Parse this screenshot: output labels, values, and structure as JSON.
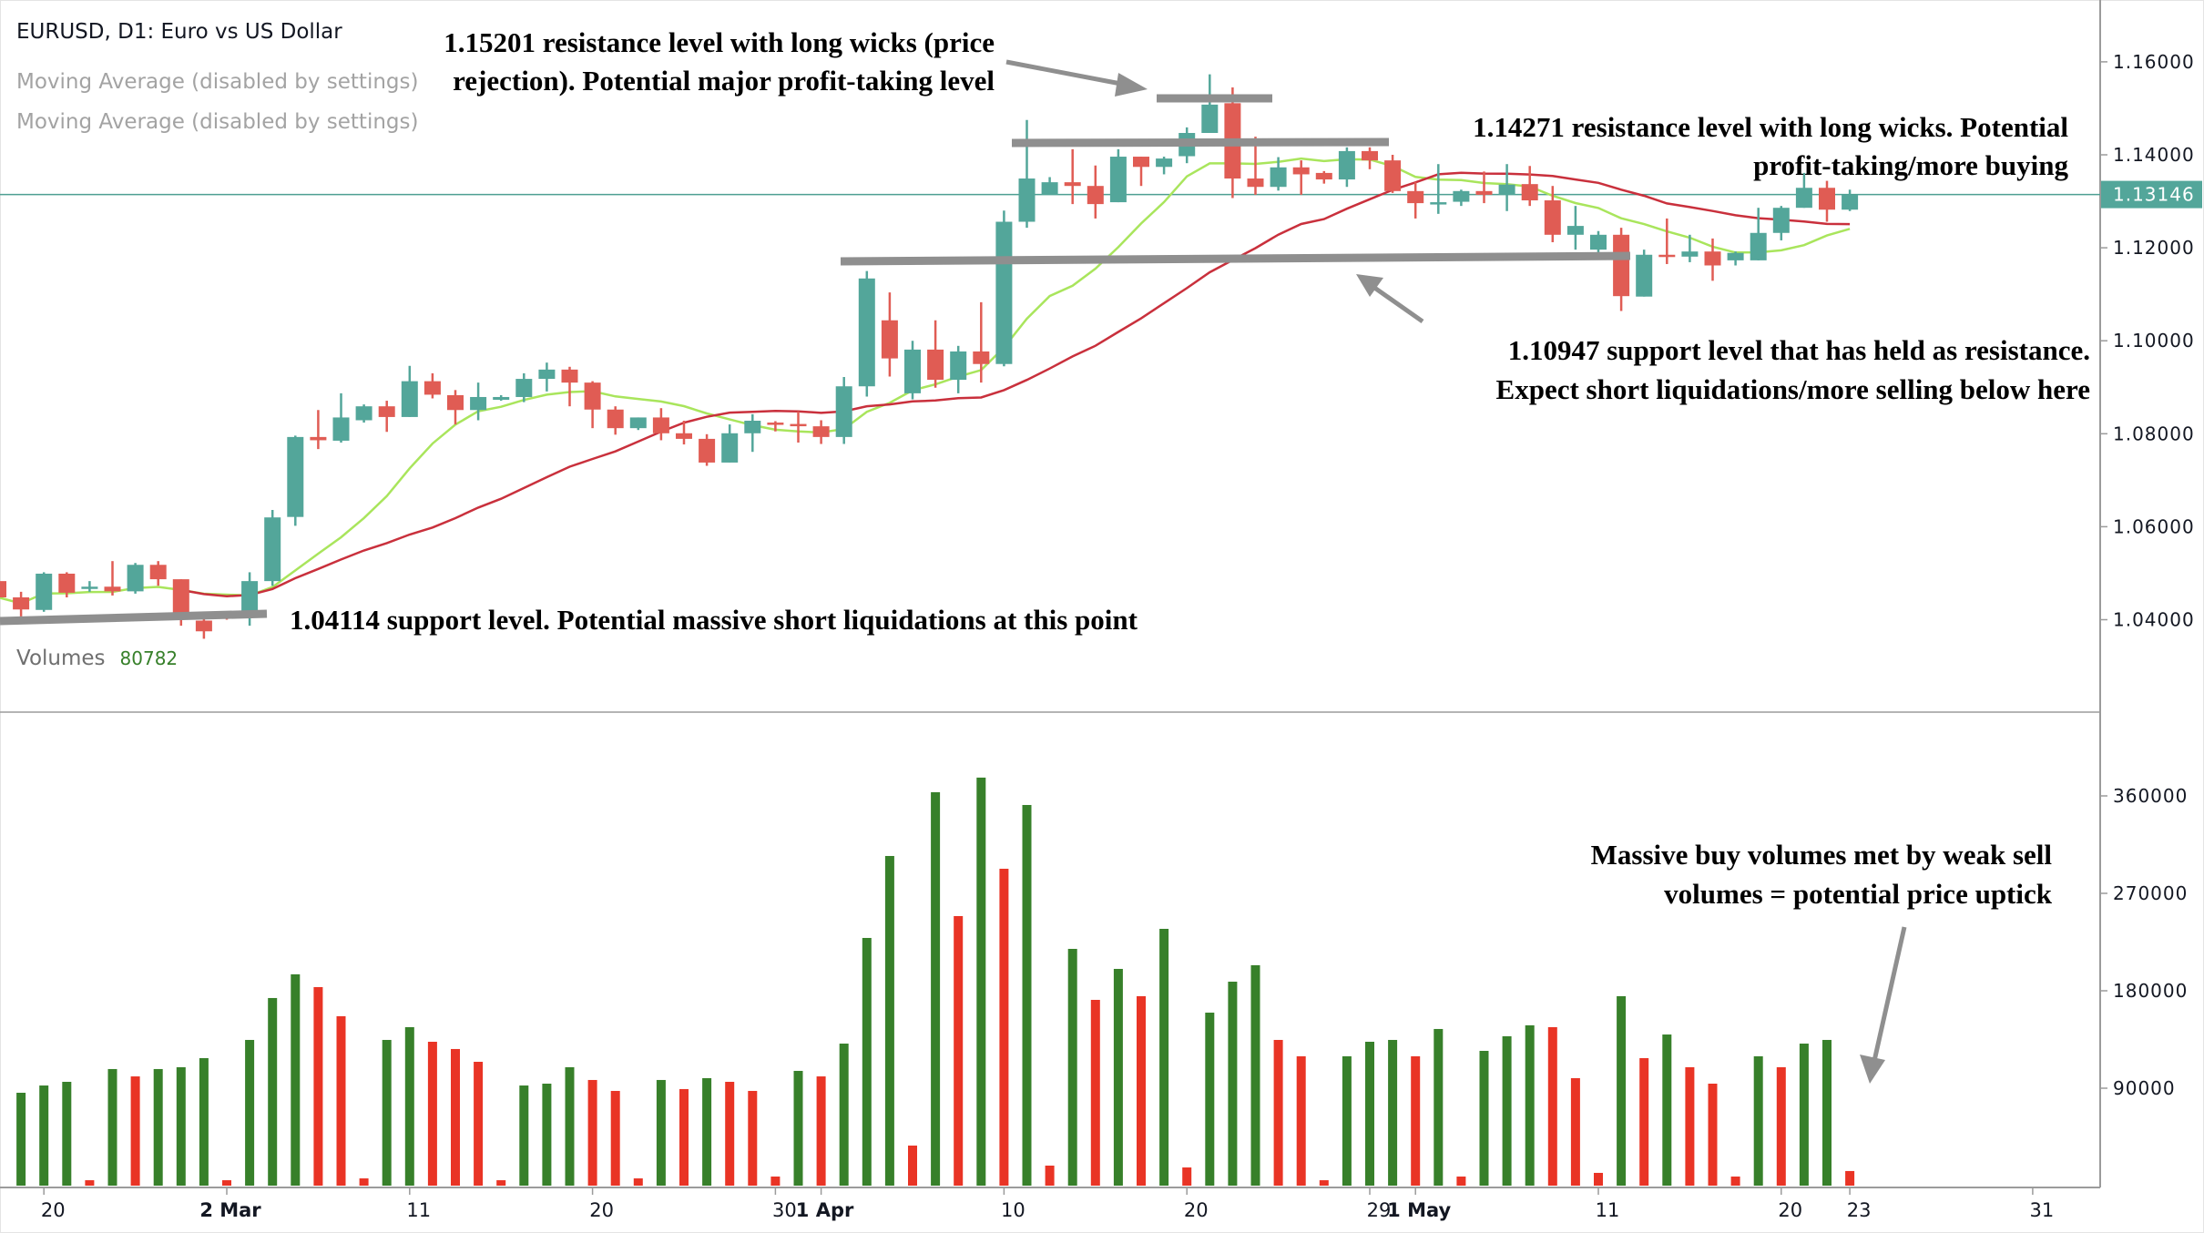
{
  "header": {
    "title": "EURUSD, D1: Euro vs US Dollar",
    "indicators": [
      "Moving Average (disabled by settings)",
      "Moving Average (disabled by settings)"
    ],
    "volumes_label": "Volumes",
    "volumes_value": "80782"
  },
  "current_price": {
    "label": "1.13146",
    "value": 1.13146
  },
  "annotations": {
    "resistance_1": [
      "1.15201 resistance level with long wicks (price",
      "rejection). Potential major profit-taking level"
    ],
    "resistance_2": [
      "1.14271 resistance level with long wicks. Potential",
      "profit-taking/more buying"
    ],
    "support_1": [
      "1.10947 support level that has held as resistance.",
      "Expect short liquidations/more selling below here"
    ],
    "support_2": [
      "1.04114 support level. Potential massive short liquidations at this point"
    ],
    "volume_note": [
      "Massive buy volumes met by weak sell",
      "volumes = potential price uptick"
    ]
  },
  "colors": {
    "up": "#53a69a",
    "down": "#e05c54",
    "vol_up": "#37802a",
    "vol_down": "#e93425",
    "ma_fast": "#a9e55c",
    "ma_slow": "#c9303c",
    "price_line": "#4e9f92",
    "level": "#8f8f8f"
  },
  "chart_data": {
    "type": "candlestick",
    "title": "EURUSD, D1: Euro vs US Dollar",
    "price_axis": {
      "ticks": [
        "1.16000",
        "1.14000",
        "1.12000",
        "1.10000",
        "1.08000",
        "1.06000",
        "1.04000"
      ],
      "range": [
        1.04,
        1.16
      ]
    },
    "volume_axis": {
      "ticks": [
        "360000",
        "270000",
        "180000",
        "90000"
      ]
    },
    "time_axis": [
      {
        "bar": 2,
        "label": "20",
        "bold": false
      },
      {
        "bar": 10,
        "label": "2 Mar",
        "bold": true
      },
      {
        "bar": 18,
        "label": "11",
        "bold": false
      },
      {
        "bar": 26,
        "label": "20",
        "bold": false
      },
      {
        "bar": 34,
        "label": "30",
        "bold": false
      },
      {
        "bar": 36,
        "label": "1 Apr",
        "bold": true
      },
      {
        "bar": 44,
        "label": "10",
        "bold": false
      },
      {
        "bar": 52,
        "label": "20",
        "bold": false
      },
      {
        "bar": 60,
        "label": "29",
        "bold": false
      },
      {
        "bar": 62,
        "label": "1 May",
        "bold": true
      },
      {
        "bar": 70,
        "label": "11",
        "bold": false
      },
      {
        "bar": 78,
        "label": "20",
        "bold": false
      },
      {
        "bar": 81,
        "label": "23",
        "bold": false
      },
      {
        "bar": 89,
        "label": "31",
        "bold": false
      }
    ],
    "ohlc": [
      [
        1.0483,
        1.049,
        1.044,
        1.0448
      ],
      [
        1.0448,
        1.046,
        1.0407,
        1.0422
      ],
      [
        1.0421,
        1.0502,
        1.0417,
        1.0499
      ],
      [
        1.0499,
        1.0502,
        1.0448,
        1.0458
      ],
      [
        1.0468,
        1.0483,
        1.046,
        1.0471
      ],
      [
        1.0471,
        1.0526,
        1.0452,
        1.0461
      ],
      [
        1.0461,
        1.0522,
        1.0456,
        1.0518
      ],
      [
        1.0518,
        1.0526,
        1.0473,
        1.0487
      ],
      [
        1.0487,
        1.0487,
        1.0387,
        1.0411
      ],
      [
        1.0398,
        1.0415,
        1.0359,
        1.0375
      ],
      [
        1.0411,
        1.0418,
        1.04,
        1.0405
      ],
      [
        1.0414,
        1.0502,
        1.0387,
        1.0483
      ],
      [
        1.0483,
        1.0636,
        1.0473,
        1.062
      ],
      [
        1.0621,
        1.0796,
        1.0602,
        1.0793
      ],
      [
        1.0793,
        1.0851,
        1.0767,
        1.0786
      ],
      [
        1.0785,
        1.0887,
        1.0781,
        1.0835
      ],
      [
        1.0829,
        1.0863,
        1.0824,
        1.0859
      ],
      [
        1.0859,
        1.0871,
        1.0804,
        1.0836
      ],
      [
        1.0836,
        1.0946,
        1.0836,
        1.0913
      ],
      [
        1.0913,
        1.093,
        1.0876,
        1.0884
      ],
      [
        1.0883,
        1.0894,
        1.082,
        1.0851
      ],
      [
        1.0851,
        1.091,
        1.0829,
        1.0879
      ],
      [
        1.0873,
        1.0883,
        1.0871,
        1.0879
      ],
      [
        1.0879,
        1.093,
        1.0868,
        1.0918
      ],
      [
        1.0918,
        1.0953,
        1.0891,
        1.0938
      ],
      [
        1.0938,
        1.0944,
        1.0859,
        1.091
      ],
      [
        1.091,
        1.0913,
        1.0812,
        1.0852
      ],
      [
        1.0852,
        1.0859,
        1.0798,
        1.0812
      ],
      [
        1.0812,
        1.0835,
        1.0808,
        1.0835
      ],
      [
        1.0835,
        1.0855,
        1.0786,
        1.0801
      ],
      [
        1.0801,
        1.0828,
        1.0777,
        1.0789
      ],
      [
        1.0789,
        1.0799,
        1.0731,
        1.0738
      ],
      [
        1.0738,
        1.082,
        1.0738,
        1.0801
      ],
      [
        1.0801,
        1.0842,
        1.0761,
        1.0828
      ],
      [
        1.0824,
        1.0827,
        1.0805,
        1.0822
      ],
      [
        1.0821,
        1.0848,
        1.0781,
        1.0818
      ],
      [
        1.0816,
        1.0829,
        1.0778,
        1.0793
      ],
      [
        1.0793,
        1.0922,
        1.0778,
        1.0902
      ],
      [
        1.0902,
        1.115,
        1.088,
        1.1134
      ],
      [
        1.1044,
        1.1104,
        1.0923,
        1.0962
      ],
      [
        1.0887,
        1.1,
        1.0874,
        1.0981
      ],
      [
        1.0981,
        1.1044,
        1.0899,
        1.0916
      ],
      [
        1.0916,
        1.0989,
        1.0887,
        1.0977
      ],
      [
        1.0977,
        1.1083,
        1.091,
        1.095
      ],
      [
        1.095,
        1.128,
        1.0945,
        1.1256
      ],
      [
        1.1256,
        1.1475,
        1.1243,
        1.1349
      ],
      [
        1.1314,
        1.1352,
        1.1314,
        1.1341
      ],
      [
        1.1341,
        1.1412,
        1.1294,
        1.1333
      ],
      [
        1.1333,
        1.1377,
        1.1263,
        1.1294
      ],
      [
        1.1298,
        1.1412,
        1.1298,
        1.1396
      ],
      [
        1.1396,
        1.1396,
        1.1333,
        1.1374
      ],
      [
        1.1374,
        1.1396,
        1.1358,
        1.1392
      ],
      [
        1.1397,
        1.1459,
        1.1382,
        1.1447
      ],
      [
        1.1447,
        1.1573,
        1.1447,
        1.1508
      ],
      [
        1.1511,
        1.1545,
        1.1307,
        1.1349
      ],
      [
        1.1349,
        1.1439,
        1.1314,
        1.1331
      ],
      [
        1.1331,
        1.1395,
        1.1323,
        1.1373
      ],
      [
        1.1373,
        1.1388,
        1.1314,
        1.1358
      ],
      [
        1.1361,
        1.1365,
        1.1338,
        1.1347
      ],
      [
        1.1347,
        1.1416,
        1.1331,
        1.1408
      ],
      [
        1.1408,
        1.1416,
        1.1369,
        1.1388
      ],
      [
        1.1388,
        1.14,
        1.1318,
        1.1322
      ],
      [
        1.1322,
        1.1341,
        1.1263,
        1.1296
      ],
      [
        1.1297,
        1.138,
        1.1273,
        1.1298
      ],
      [
        1.1299,
        1.1325,
        1.129,
        1.1322
      ],
      [
        1.1322,
        1.1364,
        1.1296,
        1.1314
      ],
      [
        1.1314,
        1.138,
        1.1279,
        1.1336
      ],
      [
        1.1337,
        1.1376,
        1.129,
        1.1302
      ],
      [
        1.1302,
        1.1333,
        1.1212,
        1.1228
      ],
      [
        1.1228,
        1.129,
        1.1196,
        1.1247
      ],
      [
        1.1196,
        1.1236,
        1.1189,
        1.1228
      ],
      [
        1.1228,
        1.1243,
        1.1064,
        1.1096
      ],
      [
        1.1095,
        1.1196,
        1.1095,
        1.1185
      ],
      [
        1.1185,
        1.1263,
        1.1165,
        1.1181
      ],
      [
        1.1181,
        1.1228,
        1.1169,
        1.1192
      ],
      [
        1.1192,
        1.122,
        1.1129,
        1.1162
      ],
      [
        1.1173,
        1.1192,
        1.1162,
        1.1189
      ],
      [
        1.1173,
        1.1286,
        1.1173,
        1.1232
      ],
      [
        1.1232,
        1.129,
        1.1216,
        1.1286
      ],
      [
        1.1286,
        1.1361,
        1.1286,
        1.1329
      ],
      [
        1.1329,
        1.1344,
        1.1256,
        1.1282
      ],
      [
        1.1282,
        1.1325,
        1.1279,
        1.1314
      ]
    ],
    "volumes": [
      null,
      85800,
      92500,
      95900,
      5000,
      107700,
      100900,
      107700,
      109400,
      117800,
      5000,
      134600,
      173300,
      195200,
      183400,
      156500,
      6700,
      134600,
      146400,
      132900,
      126200,
      114400,
      5000,
      92500,
      94200,
      109400,
      97600,
      87500,
      6700,
      97600,
      89200,
      99300,
      95900,
      87500,
      8400,
      106000,
      100900,
      131200,
      228800,
      304500,
      37000,
      363400,
      249000,
      376900,
      292700,
      351600,
      18500,
      218700,
      171600,
      200200,
      175000,
      237200,
      16800,
      159800,
      188400,
      203600,
      134600,
      119500,
      5000,
      119500,
      132900,
      134600,
      119500,
      144700,
      8400,
      124500,
      138000,
      148100,
      146400,
      99300,
      11800,
      175000,
      117800,
      139600,
      109400,
      94200,
      8400,
      119500,
      109400,
      131200,
      134600,
      13500
    ],
    "volume_dir": [
      "",
      "up",
      "up",
      "up",
      "down",
      "up",
      "down",
      "up",
      "up",
      "up",
      "down",
      "up",
      "up",
      "up",
      "down",
      "down",
      "down",
      "up",
      "up",
      "down",
      "down",
      "down",
      "down",
      "up",
      "up",
      "up",
      "down",
      "down",
      "down",
      "up",
      "down",
      "up",
      "down",
      "down",
      "down",
      "up",
      "down",
      "up",
      "up",
      "up",
      "down",
      "up",
      "down",
      "up",
      "down",
      "up",
      "down",
      "up",
      "down",
      "up",
      "down",
      "up",
      "down",
      "up",
      "up",
      "up",
      "down",
      "down",
      "down",
      "up",
      "up",
      "up",
      "down",
      "up",
      "down",
      "up",
      "up",
      "up",
      "down",
      "down",
      "down",
      "up",
      "down",
      "up",
      "down",
      "down",
      "down",
      "up",
      "down",
      "up",
      "up",
      "down"
    ],
    "moving_averages": [
      {
        "name": "fast",
        "period": 9
      },
      {
        "name": "slow",
        "period": 20
      }
    ],
    "levels": [
      1.15201,
      1.14271,
      1.10947,
      1.04114
    ]
  }
}
